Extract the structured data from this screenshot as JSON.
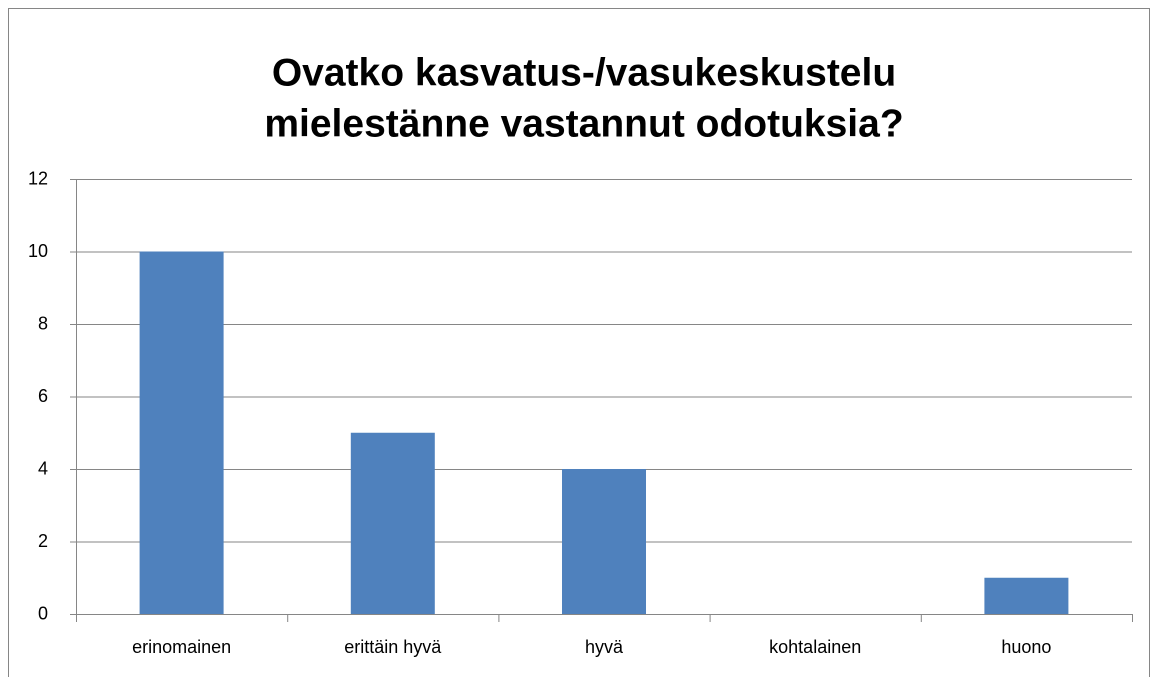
{
  "chart_data": {
    "type": "bar",
    "title": [
      "Ovatko kasvatus-/vasukeskustelu",
      "mielestänne vastannut odotuksia?"
    ],
    "categories": [
      "erinomainen",
      "erittäin hyvä",
      "hyvä",
      "kohtalainen",
      "huono"
    ],
    "values": [
      10,
      5,
      4,
      0,
      1
    ],
    "color": "#4f81bd",
    "ylim": [
      0,
      12
    ],
    "yticks": [
      0,
      2,
      4,
      6,
      8,
      10,
      12
    ],
    "grid": true
  }
}
